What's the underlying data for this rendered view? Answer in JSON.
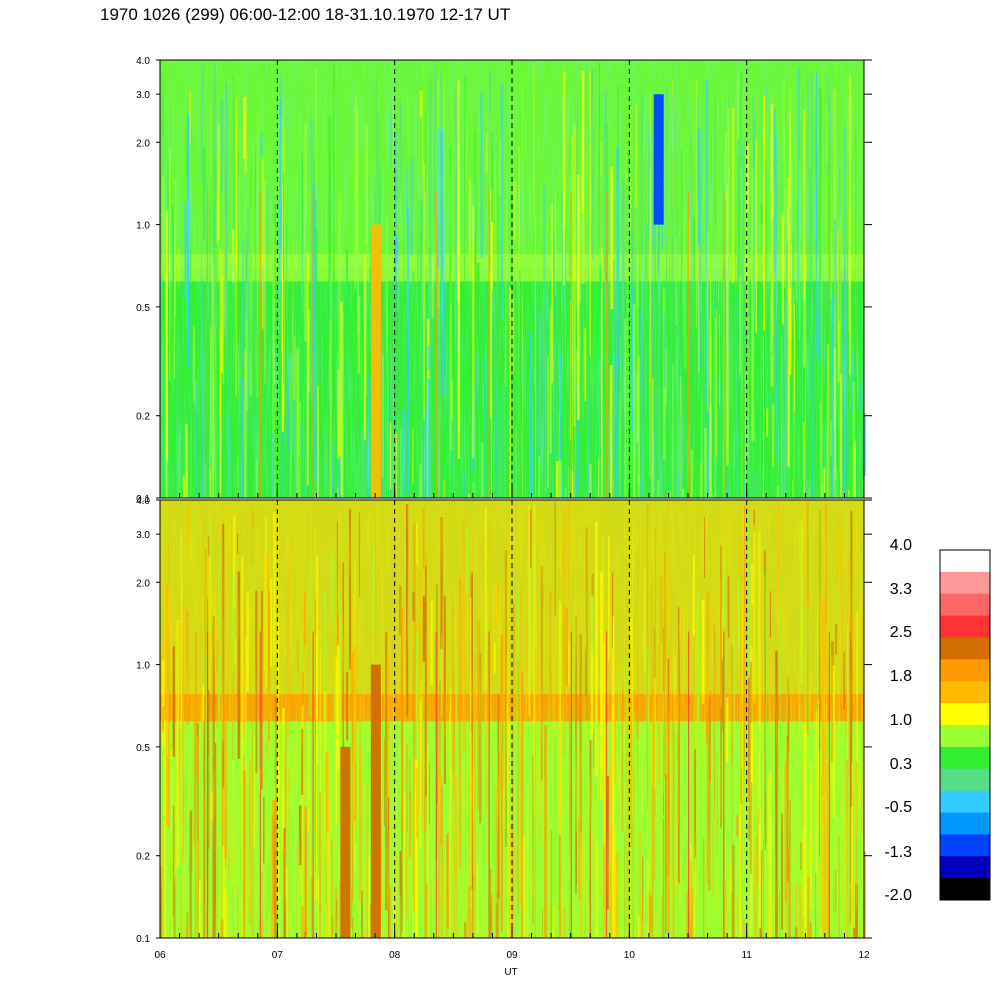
{
  "title": "1970 1026 (299) 06:00-12:00 18-31.10.1970  12-17 UT",
  "chart_data": {
    "type": "heatmap",
    "title": "1970 1026 (299) 06:00-12:00 18-31.10.1970  12-17 UT",
    "xlabel": "UT",
    "x_ticks": [
      "06",
      "07",
      "08",
      "09",
      "10",
      "11",
      "12"
    ],
    "xlim": [
      6,
      12
    ],
    "y_scale": "log",
    "panels": [
      {
        "name": "",
        "ylim": [
          0.1,
          4.0
        ],
        "y_ticks": [
          "0.1",
          "0.2",
          "0.5",
          "1.0",
          "2.0",
          "3.0",
          "4.0"
        ],
        "dominant_levels": [
          "0.3",
          "1.0"
        ],
        "features": [
          {
            "x": 7.84,
            "y_range": [
              0.1,
              1.0
            ],
            "level": "1.8"
          },
          {
            "x": 10.25,
            "y_range": [
              1.0,
              3.0
            ],
            "level": "-1.3"
          }
        ]
      },
      {
        "name": "",
        "ylim": [
          0.1,
          4.0
        ],
        "y_ticks": [
          "0.1",
          "0.2",
          "0.5",
          "1.0",
          "2.0",
          "3.0",
          "4.0"
        ],
        "dominant_levels": [
          "1.0",
          "1.8"
        ],
        "features": [
          {
            "x": 7.58,
            "y_range": [
              0.1,
              0.5
            ],
            "level": "2.5"
          },
          {
            "x": 7.84,
            "y_range": [
              0.1,
              1.0
            ],
            "level": "2.5"
          }
        ]
      }
    ],
    "colorbar": {
      "ticks": [
        "4.0",
        "3.3",
        "2.5",
        "1.8",
        "1.0",
        "0.3",
        "-0.5",
        "-1.3",
        "-2.0"
      ],
      "colors": [
        "#ffffff",
        "#ff9999",
        "#ff6666",
        "#ff3333",
        "#d26e00",
        "#ff9900",
        "#ffbb00",
        "#ffff00",
        "#99ff33",
        "#33ee33",
        "#55dd88",
        "#33ccff",
        "#0099ff",
        "#0044ff",
        "#0000bb",
        "#000000"
      ]
    }
  }
}
